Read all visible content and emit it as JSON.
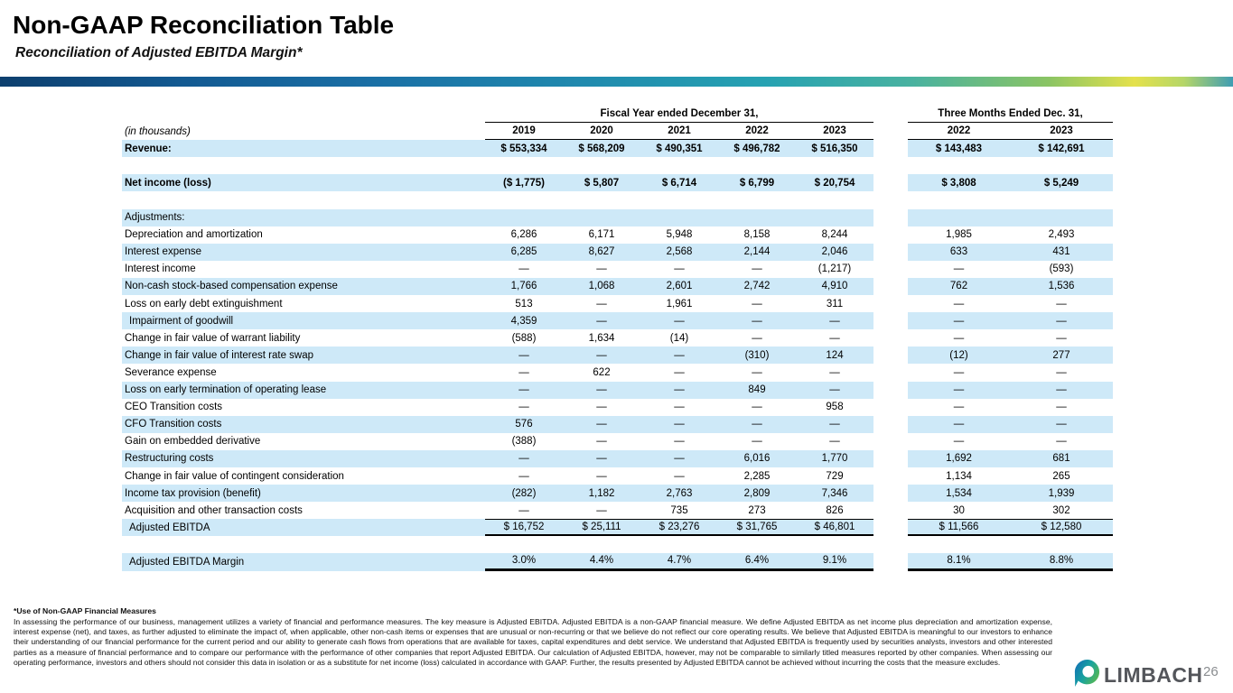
{
  "header": {
    "title": "Non-GAAP Reconciliation Table",
    "subtitle": "Reconciliation of Adjusted EBITDA Margin*"
  },
  "table": {
    "unit_label": "(in thousands)",
    "group1_header": "Fiscal Year ended December 31,",
    "group2_header": "Three Months Ended Dec. 31,",
    "group1_years": [
      "2019",
      "2020",
      "2021",
      "2022",
      "2023"
    ],
    "group2_years": [
      "2022",
      "2023"
    ],
    "rows": [
      {
        "type": "data",
        "label": "Revenue:",
        "bold": true,
        "shade": true,
        "fy": [
          "$ 553,334",
          "$ 568,209",
          "$ 490,351",
          "$ 496,782",
          "$ 516,350"
        ],
        "tm": [
          "$ 143,483",
          "$ 142,691"
        ]
      },
      {
        "type": "spacer"
      },
      {
        "type": "data",
        "label": "Net income (loss)",
        "bold": true,
        "shade": true,
        "fy": [
          "($ 1,775)",
          "$ 5,807",
          "$ 6,714",
          "$ 6,799",
          "$ 20,754"
        ],
        "tm": [
          "$ 3,808",
          "$ 5,249"
        ]
      },
      {
        "type": "spacer"
      },
      {
        "type": "data",
        "label": "Adjustments:",
        "shade": true,
        "fy": [
          "",
          "",
          "",
          "",
          ""
        ],
        "tm": [
          "",
          ""
        ]
      },
      {
        "type": "data",
        "label": "Depreciation and amortization",
        "fy": [
          "6,286",
          "6,171",
          "5,948",
          "8,158",
          "8,244"
        ],
        "tm": [
          "1,985",
          "2,493"
        ]
      },
      {
        "type": "data",
        "label": "Interest expense",
        "shade": true,
        "fy": [
          "6,285",
          "8,627",
          "2,568",
          "2,144",
          "2,046"
        ],
        "tm": [
          "633",
          "431"
        ]
      },
      {
        "type": "data",
        "label": "Interest income",
        "fy": [
          "—",
          "—",
          "—",
          "—",
          "(1,217)"
        ],
        "tm": [
          "—",
          "(593)"
        ]
      },
      {
        "type": "data",
        "label": "Non-cash stock-based compensation expense",
        "shade": true,
        "fy": [
          "1,766",
          "1,068",
          "2,601",
          "2,742",
          "4,910"
        ],
        "tm": [
          "762",
          "1,536"
        ]
      },
      {
        "type": "data",
        "label": "Loss on early debt extinguishment",
        "fy": [
          "513",
          "—",
          "1,961",
          "—",
          "311"
        ],
        "tm": [
          "—",
          "—"
        ]
      },
      {
        "type": "data",
        "label": "Impairment of goodwill",
        "shade": true,
        "indent": true,
        "fy": [
          "4,359",
          "—",
          "—",
          "—",
          "—"
        ],
        "tm": [
          "—",
          "—"
        ]
      },
      {
        "type": "data",
        "label": "Change in fair value of warrant liability",
        "fy": [
          "(588)",
          "1,634",
          "(14)",
          "—",
          "—"
        ],
        "tm": [
          "—",
          "—"
        ]
      },
      {
        "type": "data",
        "label": "Change in fair value of interest rate swap",
        "shade": true,
        "fy": [
          "—",
          "—",
          "—",
          "(310)",
          "124"
        ],
        "tm": [
          "(12)",
          "277"
        ]
      },
      {
        "type": "data",
        "label": "Severance expense",
        "fy": [
          "—",
          "622",
          "—",
          "—",
          "—"
        ],
        "tm": [
          "—",
          "—"
        ]
      },
      {
        "type": "data",
        "label": "Loss on early termination of operating lease",
        "shade": true,
        "fy": [
          "—",
          "—",
          "—",
          "849",
          "—"
        ],
        "tm": [
          "—",
          "—"
        ]
      },
      {
        "type": "data",
        "label": "CEO Transition costs",
        "fy": [
          "—",
          "—",
          "—",
          "—",
          "958"
        ],
        "tm": [
          "—",
          "—"
        ]
      },
      {
        "type": "data",
        "label": "CFO Transition costs",
        "shade": true,
        "fy": [
          "576",
          "—",
          "—",
          "—",
          "—"
        ],
        "tm": [
          "—",
          "—"
        ]
      },
      {
        "type": "data",
        "label": "Gain on embedded derivative",
        "fy": [
          "(388)",
          "—",
          "—",
          "—",
          "—"
        ],
        "tm": [
          "—",
          "—"
        ]
      },
      {
        "type": "data",
        "label": "Restructuring costs",
        "shade": true,
        "fy": [
          "—",
          "—",
          "—",
          "6,016",
          "1,770"
        ],
        "tm": [
          "1,692",
          "681"
        ]
      },
      {
        "type": "data",
        "label": "Change in fair value of contingent consideration",
        "fy": [
          "—",
          "—",
          "—",
          "2,285",
          "729"
        ],
        "tm": [
          "1,134",
          "265"
        ]
      },
      {
        "type": "data",
        "label": "Income tax provision (benefit)",
        "shade": true,
        "fy": [
          "(282)",
          "1,182",
          "2,763",
          "2,809",
          "7,346"
        ],
        "tm": [
          "1,534",
          "1,939"
        ]
      },
      {
        "type": "data",
        "label": "Acquisition and other transaction costs",
        "fy": [
          "—",
          "—",
          "735",
          "273",
          "826"
        ],
        "tm": [
          "30",
          "302"
        ]
      },
      {
        "type": "data",
        "label": "Adjusted EBITDA",
        "shade": true,
        "indent": true,
        "style": "total",
        "fy": [
          "$ 16,752",
          "$ 25,111",
          "$ 23,276",
          "$ 31,765",
          "$ 46,801"
        ],
        "tm": [
          "$ 11,566",
          "$ 12,580"
        ]
      },
      {
        "type": "spacer"
      },
      {
        "type": "data",
        "label": "Adjusted EBITDA Margin",
        "shade": true,
        "indent": true,
        "style": "margin",
        "fy": [
          "3.0%",
          "4.4%",
          "4.7%",
          "6.4%",
          "9.1%"
        ],
        "tm": [
          "8.1%",
          "8.8%"
        ]
      }
    ]
  },
  "footnote": {
    "heading": "*Use of Non-GAAP Financial Measures",
    "body": "In assessing the performance of our business, management utilizes a variety of financial and performance measures. The key measure is Adjusted EBITDA. Adjusted EBITDA is a non-GAAP financial measure. We define Adjusted EBITDA as net income plus depreciation and amortization expense, interest expense (net), and taxes, as further adjusted to eliminate the impact of, when applicable, other non-cash items or expenses that are unusual or non-recurring or that we believe do not reflect our core operating results. We believe that Adjusted EBITDA is meaningful to our investors to enhance their understanding of our financial performance for the current period and our ability to generate cash flows from operations that are available for taxes, capital expenditures and debt service. We understand that Adjusted EBITDA is frequently used by securities analysts, investors and other interested parties as a measure of financial performance and to compare our performance with the performance of other companies that report Adjusted EBITDA. Our calculation of Adjusted EBITDA, however, may not be comparable to similarly titled measures reported by other companies. When assessing our operating performance, investors and others should not consider this data in isolation or as a substitute for net income (loss) calculated in accordance with GAAP. Further, the results presented by Adjusted EBITDA cannot be achieved without incurring the costs that the measure excludes."
  },
  "footer": {
    "logo_text": "LIMBACH",
    "page_number": "26"
  },
  "colors": {
    "row_highlight": "#cee9f8",
    "accent_navy": "#0d3f6e",
    "accent_teal": "#26a2b2",
    "accent_yellow": "#e4e14c",
    "logo_gray": "#54565b"
  }
}
